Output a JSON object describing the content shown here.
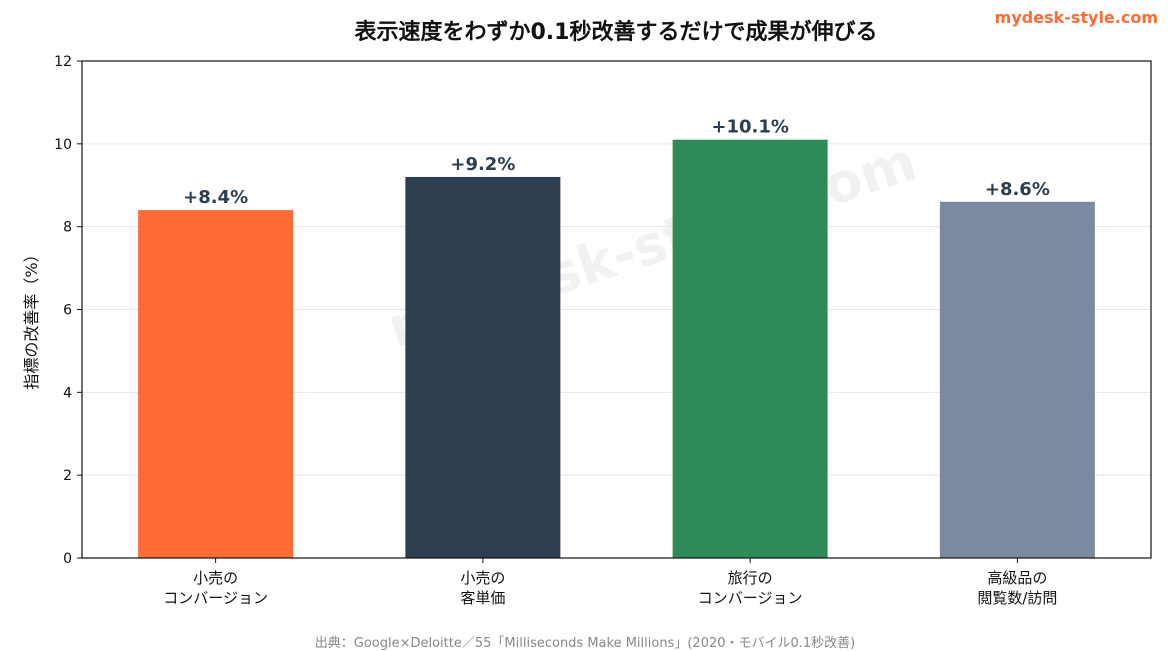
{
  "brand": "mydesk-style.com",
  "watermark": "mydesk-style.com",
  "footer": "出典：Google×Deloitte／55「Milliseconds Make Millions」(2020・モバイル0.1秒改善)",
  "chart_data": {
    "type": "bar",
    "title": "表示速度をわずか0.1秒改善するだけで成果が伸びる",
    "xlabel": "",
    "ylabel": "指標の改善率（%）",
    "ylim": [
      0,
      12
    ],
    "yticks": [
      0,
      2,
      4,
      6,
      8,
      10,
      12
    ],
    "grid": true,
    "categories": [
      [
        "小売の",
        "コンバージョン"
      ],
      [
        "小売の",
        "客単価"
      ],
      [
        "旅行の",
        "コンバージョン"
      ],
      [
        "高級品の",
        "閲覧数/訪問"
      ]
    ],
    "values": [
      8.4,
      9.2,
      10.1,
      8.6
    ],
    "data_labels": [
      "+8.4%",
      "+9.2%",
      "+10.1%",
      "+8.6%"
    ],
    "colors": [
      "#ff6b35",
      "#2d3e50",
      "#2e8b57",
      "#7a8aa0"
    ],
    "label_color": "#2d3e50"
  }
}
